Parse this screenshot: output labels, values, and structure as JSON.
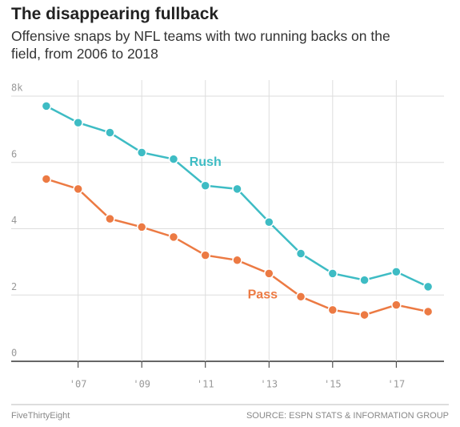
{
  "chart_data": {
    "type": "line",
    "title": "The disappearing fullback",
    "subtitle": "Offensive snaps by NFL teams with two running backs on the field, from 2006 to 2018",
    "x": [
      2006,
      2007,
      2008,
      2009,
      2010,
      2011,
      2012,
      2013,
      2014,
      2015,
      2016,
      2017,
      2018
    ],
    "series": [
      {
        "name": "Rush",
        "color": "#3ebcc4",
        "values": [
          7.7,
          7.2,
          6.9,
          6.3,
          6.1,
          5.3,
          5.2,
          4.2,
          3.25,
          2.65,
          2.45,
          2.7,
          2.25
        ]
      },
      {
        "name": "Pass",
        "color": "#ec7a43",
        "values": [
          5.5,
          5.2,
          4.3,
          4.05,
          3.75,
          3.2,
          3.05,
          2.65,
          1.95,
          1.55,
          1.4,
          1.7,
          1.5
        ]
      }
    ],
    "xlim": [
      2005.5,
      2018.5
    ],
    "xticks": [
      {
        "value": 2007,
        "label": "'07"
      },
      {
        "value": 2009,
        "label": "'09"
      },
      {
        "value": 2011,
        "label": "'11"
      },
      {
        "value": 2013,
        "label": "'13"
      },
      {
        "value": 2015,
        "label": "'15"
      },
      {
        "value": 2017,
        "label": "'17"
      }
    ],
    "ylim": [
      0,
      8
    ],
    "yticks": [
      0,
      2,
      4,
      6,
      {
        "value": 8,
        "label": "8k"
      }
    ],
    "grid": true,
    "footer_left": "FiveThirtyEight",
    "footer_right": "SOURCE: ESPN STATS & INFORMATION GROUP"
  }
}
